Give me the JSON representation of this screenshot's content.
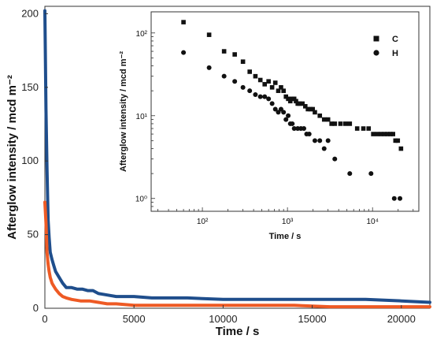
{
  "chart_data": [
    {
      "type": "line",
      "title": "",
      "xlabel": "Time / s",
      "ylabel": "Afterglow intensity / mcd m⁻²",
      "xlim": [
        0,
        21600
      ],
      "ylim": [
        0,
        205
      ],
      "xticks": [
        "0",
        "5000",
        "10000",
        "15000",
        "20000"
      ],
      "xtick_values": [
        0,
        5000,
        10000,
        15000,
        20000
      ],
      "yticks": [
        "0",
        "50",
        "100",
        "150",
        "200"
      ],
      "ytick_values": [
        0,
        50,
        100,
        150,
        200
      ],
      "series": [
        {
          "color": "#1f4e8c",
          "x": [
            0,
            60,
            120,
            180,
            240,
            300,
            400,
            500,
            600,
            800,
            1000,
            1200,
            1500,
            1800,
            2100,
            2400,
            2700,
            3000,
            3500,
            4000,
            5000,
            6000,
            8000,
            10000,
            12000,
            14000,
            16000,
            18000,
            20000,
            21600
          ],
          "y": [
            202,
            135,
            95,
            60,
            48,
            38,
            33,
            29,
            25,
            21,
            17,
            14,
            14,
            13,
            13,
            12,
            12,
            10,
            9,
            8,
            8,
            7,
            7,
            6,
            6,
            6,
            6,
            6,
            5,
            4
          ]
        },
        {
          "color": "#ee5a24",
          "x": [
            0,
            60,
            120,
            180,
            240,
            300,
            400,
            500,
            600,
            800,
            1000,
            1200,
            1500,
            2000,
            2500,
            3000,
            3500,
            4000,
            5000,
            6000,
            8000,
            10000,
            12000,
            14000,
            16000,
            18000,
            20000,
            21600
          ],
          "y": [
            72,
            58,
            38,
            30,
            25,
            21,
            17,
            15,
            13,
            10,
            8,
            7,
            6,
            5,
            5,
            4,
            3,
            3,
            2,
            2,
            2,
            2,
            2,
            2,
            1,
            1,
            1,
            1
          ]
        }
      ]
    },
    {
      "type": "scatter",
      "title": "",
      "xlabel": "Time / s",
      "ylabel": "Afterglow intensity / mcd m⁻²",
      "xscale": "log",
      "yscale": "log",
      "xlim": [
        25,
        35000
      ],
      "ylim": [
        0.7,
        180
      ],
      "xticks": [
        "10²",
        "10³",
        "10⁴"
      ],
      "xtick_values": [
        100,
        1000,
        10000
      ],
      "yticks": [
        "10⁰",
        "10¹",
        "10²"
      ],
      "ytick_values": [
        1,
        10,
        100
      ],
      "legend": "top-right",
      "series": [
        {
          "name": "C",
          "marker": "square",
          "x": [
            60,
            120,
            180,
            240,
            300,
            360,
            420,
            480,
            540,
            600,
            660,
            720,
            780,
            840,
            900,
            960,
            1020,
            1080,
            1140,
            1200,
            1260,
            1320,
            1380,
            1500,
            1620,
            1740,
            1860,
            1980,
            2100,
            2400,
            2700,
            3000,
            3300,
            3600,
            4200,
            4800,
            5400,
            6600,
            7800,
            9000,
            10200,
            11400,
            12600,
            13800,
            15000,
            16200,
            17400,
            18600,
            19800,
            21600
          ],
          "y": [
            135,
            95,
            60,
            55,
            45,
            34,
            30,
            27,
            24,
            26,
            22,
            25,
            20,
            22,
            20,
            17,
            16,
            15,
            16,
            16,
            15,
            14,
            14,
            14,
            13,
            12,
            12,
            12,
            11,
            10,
            9,
            9,
            8,
            8,
            8,
            8,
            8,
            7,
            7,
            7,
            6,
            6,
            6,
            6,
            6,
            6,
            6,
            5,
            5,
            4
          ]
        },
        {
          "name": "H",
          "marker": "circle",
          "x": [
            60,
            120,
            180,
            240,
            300,
            360,
            420,
            480,
            540,
            600,
            660,
            720,
            780,
            840,
            900,
            960,
            1020,
            1080,
            1140,
            1200,
            1320,
            1440,
            1560,
            1680,
            1800,
            2100,
            2400,
            2700,
            3000,
            3600,
            5400,
            9600,
            18000,
            21000
          ],
          "y": [
            58,
            38,
            30,
            26,
            22,
            20,
            18,
            17,
            17,
            16,
            14,
            12,
            11,
            12,
            11,
            9,
            10,
            8,
            8,
            7,
            7,
            7,
            7,
            6,
            6,
            5,
            5,
            4,
            5,
            3,
            2,
            2,
            1,
            1
          ]
        }
      ]
    }
  ]
}
